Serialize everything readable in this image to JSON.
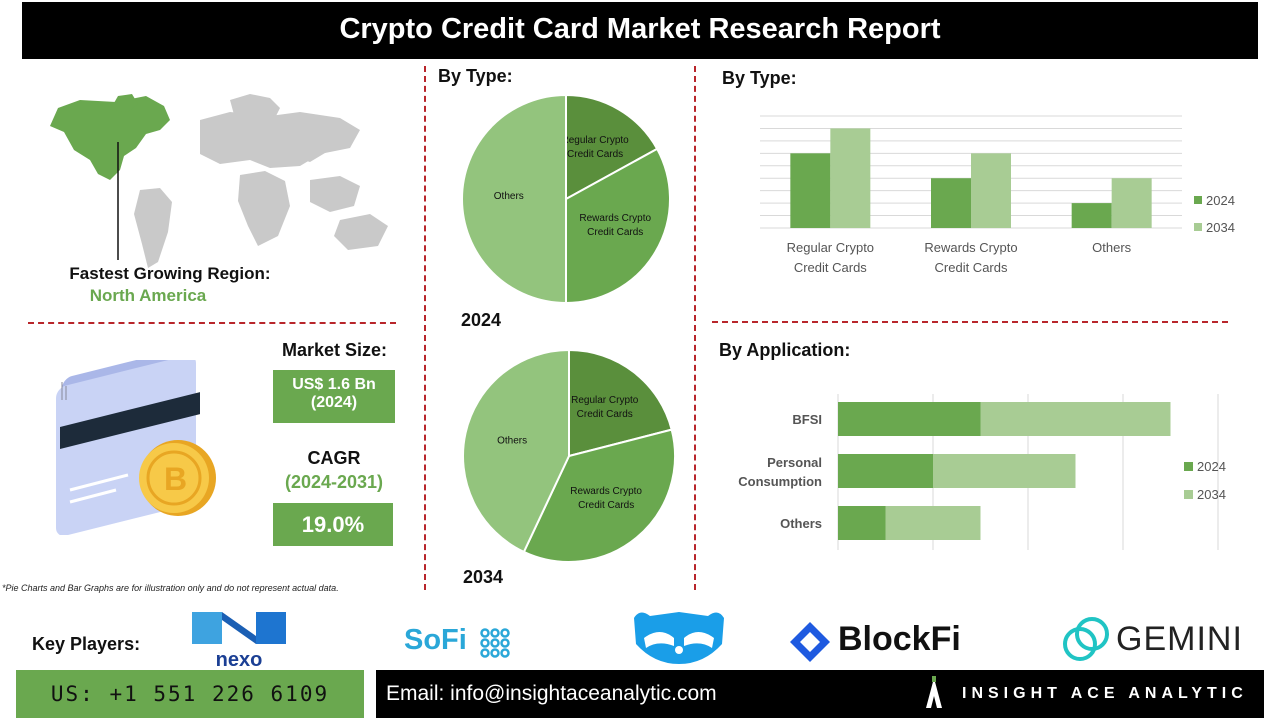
{
  "title": "Crypto Credit Card Market Research Report",
  "region": {
    "label": "Fastest Growing Region:",
    "value": "North America"
  },
  "market": {
    "size_label": "Market Size:",
    "size_value": "US$ 1.6 Bn",
    "size_year": "(2024)",
    "cagr_label": "CAGR",
    "cagr_period": "(2024-2031)",
    "cagr_value": "19.0%"
  },
  "footnote": "*Pie Charts and Bar Graphs are for illustration only and do not represent actual data.",
  "key_players_label": "Key Players:",
  "logos": {
    "nexo": "nexo",
    "sofi": "SoFi",
    "blockfi": "BlockFi",
    "gemini": "GEMINI"
  },
  "contact": {
    "phone": "US: +1 551 226 6109",
    "email": "Email: info@insightaceanalytic.com"
  },
  "brand": "INSIGHT ACE ANALYTIC",
  "colors": {
    "dark_green": "#5a8f3c",
    "mid_green": "#6aa84f",
    "light_green": "#a8cc94",
    "pie_light": "#93c47d",
    "divider_red": "#b8262b"
  },
  "chart_data": [
    {
      "type": "pie",
      "title": "By Type:",
      "caption": "2024",
      "categories": [
        "Regular Crypto Credit Cards",
        "Rewards Crypto Credit Cards",
        "Others"
      ],
      "values": [
        17,
        33,
        50
      ],
      "colors": [
        "#5a8f3c",
        "#6aa84f",
        "#93c47d"
      ]
    },
    {
      "type": "pie",
      "caption": "2034",
      "categories": [
        "Regular Crypto Credit Cards",
        "Rewards Crypto Credit Cards",
        "Others"
      ],
      "values": [
        21,
        36,
        43
      ],
      "colors": [
        "#5a8f3c",
        "#6aa84f",
        "#93c47d"
      ]
    },
    {
      "type": "bar",
      "title": "By  Type:",
      "categories": [
        "Regular Crypto Credit Cards",
        "Rewards Crypto Credit Cards",
        "Others"
      ],
      "series": [
        {
          "name": "2024",
          "values": [
            3,
            2,
            1
          ],
          "color": "#6aa84f"
        },
        {
          "name": "2034",
          "values": [
            4,
            3,
            2
          ],
          "color": "#a8cc94"
        }
      ],
      "ylim": [
        0,
        4.5
      ],
      "grid": true,
      "legend": "right"
    },
    {
      "type": "bar",
      "orientation": "horizontal",
      "stacked": true,
      "title": "By Application:",
      "categories": [
        "BFSI",
        "Personal Consumption",
        "Others"
      ],
      "series": [
        {
          "name": "2024",
          "values": [
            3,
            2,
            1
          ],
          "color": "#6aa84f"
        },
        {
          "name": "2034",
          "values": [
            4,
            3,
            2
          ],
          "color": "#a8cc94"
        }
      ],
      "xlim": [
        0,
        8
      ],
      "grid": true,
      "legend": "right"
    }
  ]
}
